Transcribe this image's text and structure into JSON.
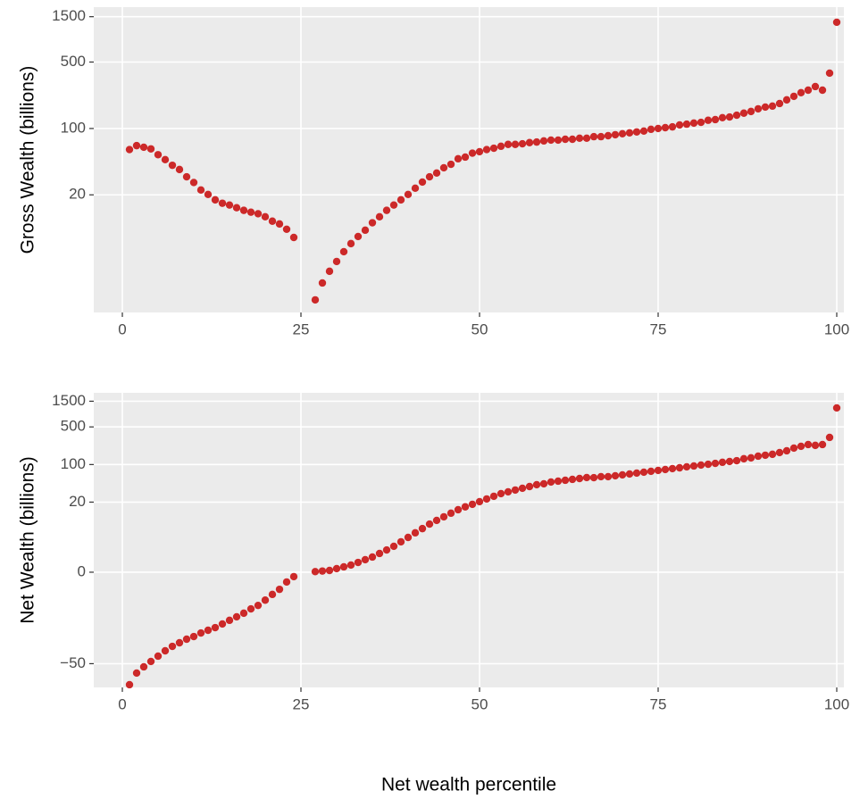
{
  "chart_data": [
    {
      "type": "scatter",
      "ylabel": "Gross Wealth (billions)",
      "scale": "pseudo_log",
      "color": "#cc2929",
      "grid": true,
      "xlim": [
        -4,
        101
      ],
      "xticks": [
        0,
        25,
        50,
        75,
        100
      ],
      "ylim": [
        0.3,
        1890
      ],
      "yticks": [
        20,
        100,
        500,
        1500
      ],
      "x": [
        1,
        2,
        3,
        4,
        5,
        6,
        7,
        8,
        9,
        10,
        11,
        12,
        13,
        14,
        15,
        16,
        17,
        18,
        19,
        20,
        21,
        22,
        23,
        24,
        25,
        26,
        27,
        28,
        29,
        30,
        31,
        32,
        33,
        34,
        35,
        36,
        37,
        38,
        39,
        40,
        41,
        42,
        43,
        44,
        45,
        46,
        47,
        48,
        49,
        50,
        51,
        52,
        53,
        54,
        55,
        56,
        57,
        58,
        59,
        60,
        61,
        62,
        63,
        64,
        65,
        66,
        67,
        68,
        69,
        70,
        71,
        72,
        73,
        74,
        75,
        76,
        77,
        78,
        79,
        80,
        81,
        82,
        83,
        84,
        85,
        86,
        87,
        88,
        89,
        90,
        91,
        92,
        93,
        94,
        95,
        96,
        97,
        98,
        99,
        100
      ],
      "values": [
        60,
        66,
        63.5,
        61,
        53,
        47,
        41,
        37,
        31,
        27,
        22.5,
        20.2,
        17.7,
        16.3,
        15.6,
        14.6,
        13.7,
        13.1,
        12.6,
        11.7,
        10.5,
        9.8,
        8.6,
        7.0,
        null,
        null,
        0.94,
        1.95,
        2.83,
        3.74,
        4.86,
        5.99,
        7.17,
        8.4,
        10.1,
        11.7,
        13.7,
        15.6,
        17.7,
        20.2,
        23.5,
        27.3,
        31,
        34,
        38.6,
        42,
        48,
        50,
        55,
        57,
        60,
        62,
        65,
        68,
        68,
        69,
        71,
        72,
        74,
        75.5,
        75.5,
        77,
        77,
        79,
        79,
        82,
        82,
        84,
        86,
        88,
        90,
        92,
        94,
        98,
        100,
        102,
        104,
        109,
        111,
        114,
        116,
        122,
        124,
        130,
        132,
        138,
        145,
        151,
        161,
        168,
        172,
        183,
        200,
        218,
        238,
        253,
        276,
        253,
        382,
        1310
      ]
    },
    {
      "type": "scatter",
      "ylabel": "Net Wealth (billions)",
      "xlabel": "Net wealth percentile",
      "scale": "pseudo_log",
      "color": "#cc2929",
      "grid": true,
      "xlim": [
        -4,
        101
      ],
      "xticks": [
        0,
        25,
        50,
        75,
        100
      ],
      "ylim": [
        -138,
        2150
      ],
      "yticks": [
        {
          "value": -50,
          "label": "−50"
        },
        0,
        20,
        100,
        500,
        1500
      ],
      "x": [
        1,
        2,
        3,
        4,
        5,
        6,
        7,
        8,
        9,
        10,
        11,
        12,
        13,
        14,
        15,
        16,
        17,
        18,
        19,
        20,
        21,
        22,
        23,
        24,
        25,
        26,
        27,
        28,
        29,
        30,
        31,
        32,
        33,
        34,
        35,
        36,
        37,
        38,
        39,
        40,
        41,
        42,
        43,
        44,
        45,
        46,
        47,
        48,
        49,
        50,
        51,
        52,
        53,
        54,
        55,
        56,
        57,
        58,
        59,
        60,
        61,
        62,
        63,
        64,
        65,
        66,
        67,
        68,
        69,
        70,
        71,
        72,
        73,
        74,
        75,
        76,
        77,
        78,
        79,
        80,
        81,
        82,
        83,
        84,
        85,
        86,
        87,
        88,
        89,
        90,
        91,
        92,
        93,
        94,
        95,
        96,
        97,
        98,
        99,
        100
      ],
      "values": [
        -123,
        -74.8,
        -57.3,
        -45.5,
        -36.2,
        -28.8,
        -23.8,
        -20.4,
        -17.5,
        -15.6,
        -13.4,
        -11.9,
        -10.6,
        -9.05,
        -7.7,
        -6.6,
        -5.6,
        -4.6,
        -3.9,
        -3.0,
        -2.2,
        -1.6,
        -0.86,
        -0.38,
        null,
        null,
        0.05,
        0.1,
        0.15,
        0.31,
        0.46,
        0.62,
        0.86,
        1.12,
        1.39,
        1.78,
        2.2,
        2.7,
        3.4,
        4.2,
        5.2,
        6.3,
        7.7,
        9.05,
        10.6,
        12.4,
        14.4,
        16.3,
        18.2,
        20.4,
        22.9,
        25.7,
        28.8,
        31.1,
        33.6,
        36.2,
        39,
        42.2,
        43.8,
        47.3,
        49.1,
        51,
        53,
        55,
        57.3,
        57,
        59.5,
        59.5,
        61.8,
        64.2,
        66.7,
        69.3,
        72,
        74.8,
        77.7,
        80.8,
        84,
        87,
        90.6,
        94,
        97.7,
        101,
        105,
        110,
        114,
        118,
        128,
        133,
        143,
        149,
        155,
        167,
        180,
        202,
        218,
        235,
        227,
        235,
        319,
        1125
      ]
    }
  ]
}
